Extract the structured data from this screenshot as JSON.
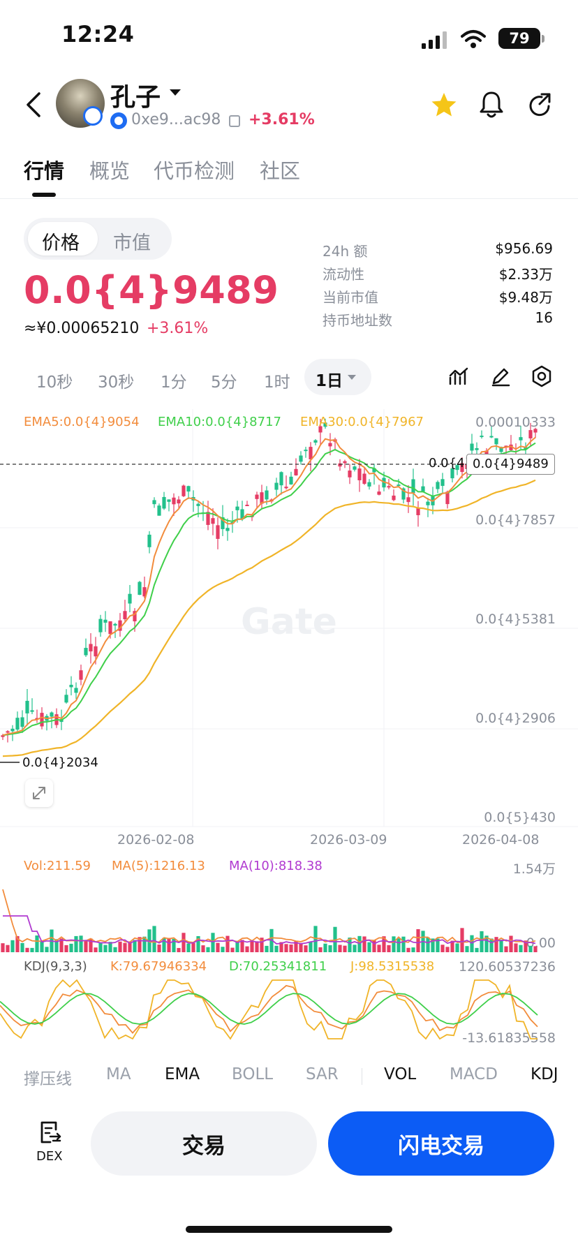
{
  "status_bar": {
    "time": "12:24",
    "battery": "79"
  },
  "header": {
    "token_name": "孔子",
    "address": "0xe9...ac98",
    "change": "+3.61%"
  },
  "tabs": [
    {
      "label": "行情"
    },
    {
      "label": "概览"
    },
    {
      "label": "代币检测"
    },
    {
      "label": "社区"
    }
  ],
  "price_toggle": {
    "price": "价格",
    "market_cap": "市值"
  },
  "price": {
    "value": "0.0{4}9489",
    "cny": "≈¥0.00065210",
    "change": "+3.61%"
  },
  "stats": [
    {
      "label": "24h  额",
      "value": "$956.69"
    },
    {
      "label": "流动性",
      "value": "$2.33万"
    },
    {
      "label": "当前市值",
      "value": "$9.48万"
    },
    {
      "label": "持币地址数",
      "value": "16"
    }
  ],
  "timeframes": [
    "10秒",
    "30秒",
    "1分",
    "5分",
    "1时"
  ],
  "timeframe_selected": "1日",
  "indicators": {
    "ema5": "EMA5:0.0{4}9054",
    "ema10": "EMA10:0.0{4}8717",
    "ema30": "EMA30:0.0{4}7967"
  },
  "price_axis": [
    "0.00010333",
    "0.0{4}7857",
    "0.0{4}5381",
    "0.0{4}2906",
    "0.0{5}430"
  ],
  "last_price_tag": "0.0{4}9489",
  "last_price_left": "0.0{4}",
  "min_price_tag": "0.0{4}2034",
  "watermark": "Gate",
  "dates": [
    "2026-02-08",
    "2026-03-09",
    "2026-04-08"
  ],
  "volume": {
    "vol": "Vol:211.59",
    "ma5": "MA(5):1216.13",
    "ma10": "MA(10):818.38",
    "axis_top": "1.54万",
    "axis_bottom": "0.00"
  },
  "kdj": {
    "name": "KDJ(9,3,3)",
    "k": "K:79.67946334",
    "d": "D:70.25341811",
    "j": "J:98.5315538",
    "axis_top": "120.60537236",
    "axis_bottom": "-13.61835558"
  },
  "indicator_tabs": [
    "撑压线",
    "MA",
    "EMA",
    "BOLL",
    "SAR",
    "VOL",
    "MACD",
    "KDJ"
  ],
  "bottom_bar": {
    "dex": "DEX",
    "trade": "交易",
    "flash_trade": "闪电交易"
  },
  "colors": {
    "up": "#e53c64",
    "down": "#22c08b",
    "ema5": "#f28c3c",
    "ema10": "#3fcf4a",
    "ema30": "#f0b428",
    "accent": "#0c5cf5",
    "ma10": "#b03ad0"
  },
  "icons": [
    "back-icon",
    "star-icon",
    "bell-icon",
    "share-icon",
    "copy-icon",
    "line-chart-icon",
    "draw-icon",
    "settings-icon",
    "expand-icon",
    "dex-icon"
  ]
}
